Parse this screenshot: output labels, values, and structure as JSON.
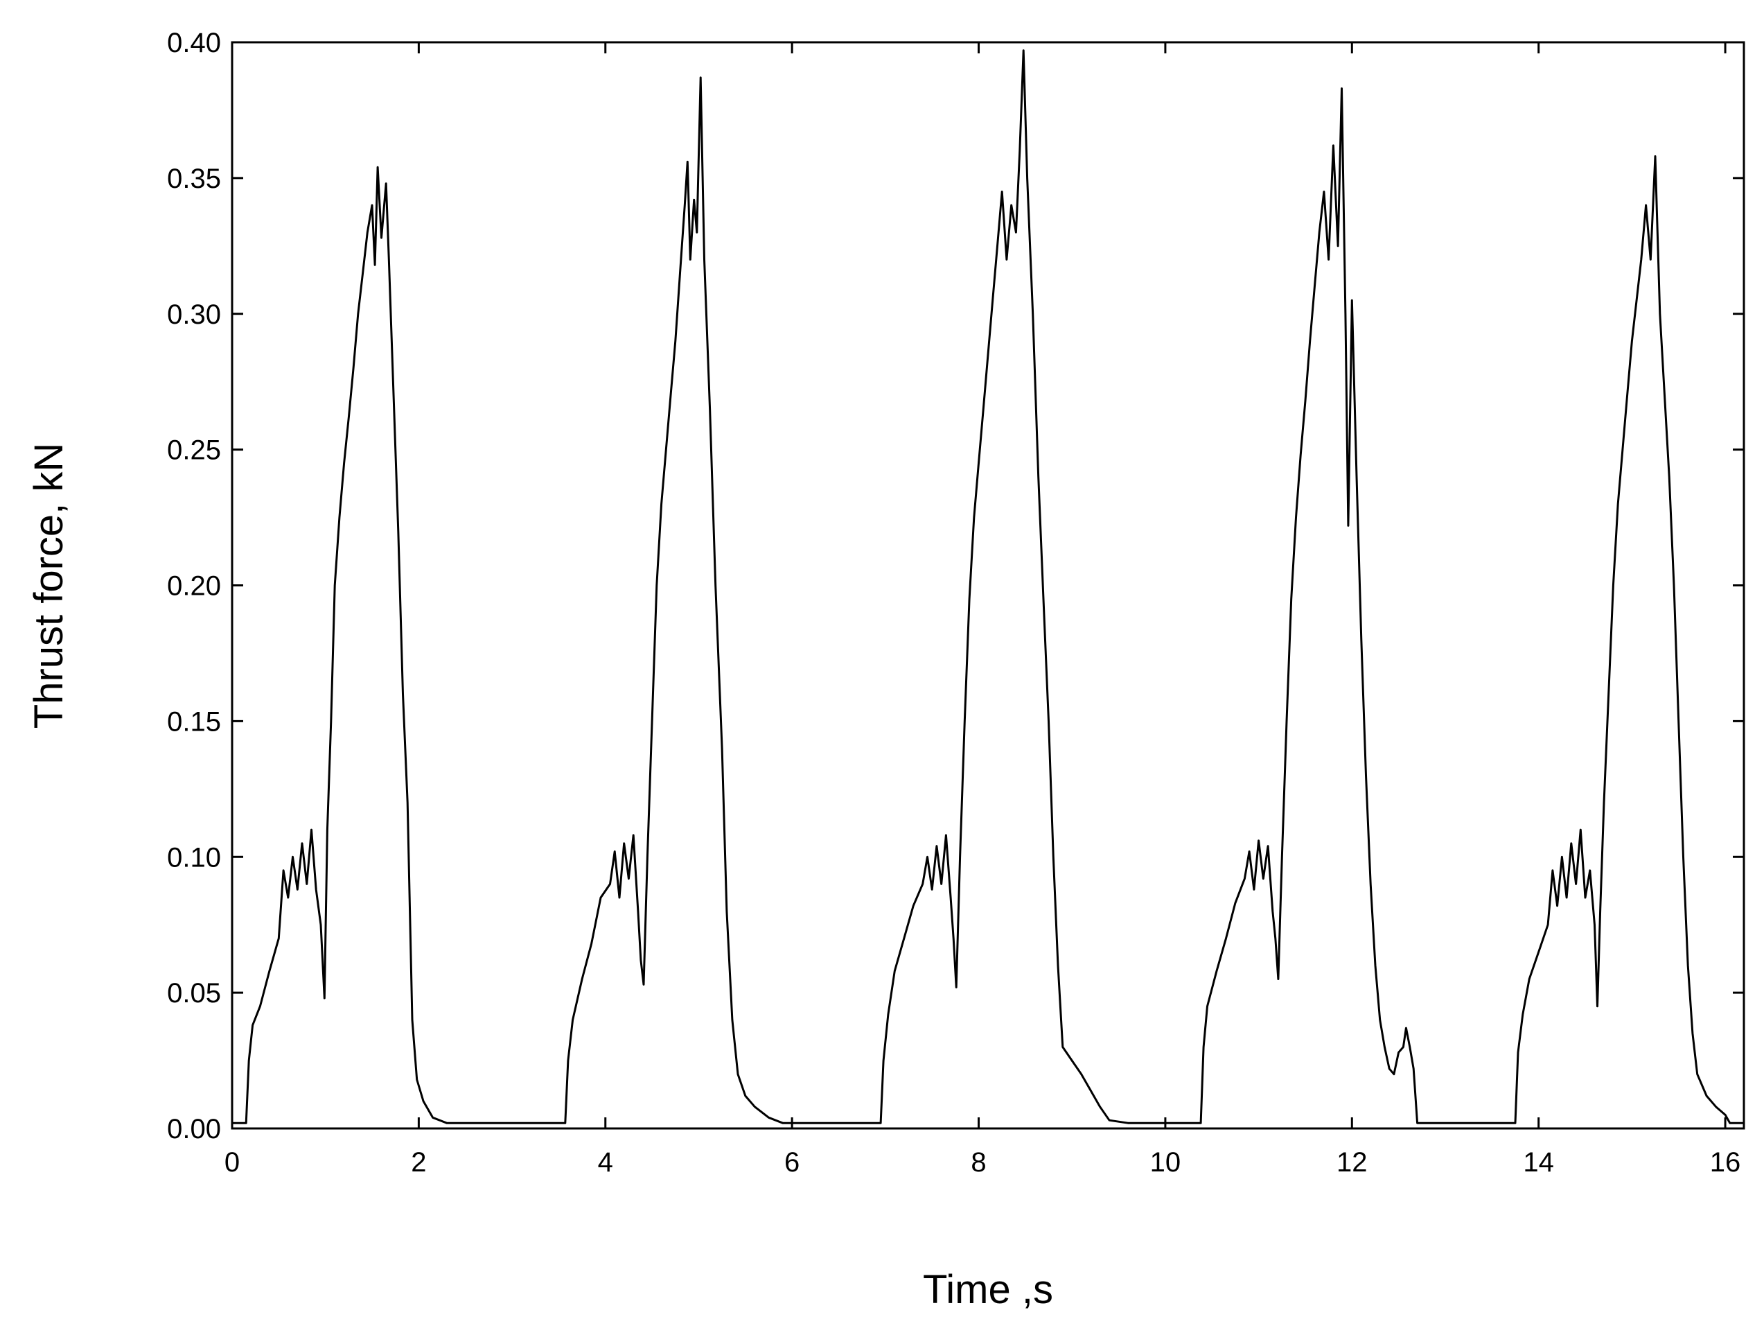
{
  "chart_data": {
    "type": "line",
    "title": "",
    "xlabel": "Time ,s",
    "ylabel": "Thrust force, kN",
    "xlim": [
      0,
      16.2
    ],
    "ylim": [
      0,
      0.4
    ],
    "x_ticks": [
      0,
      2,
      4,
      6,
      8,
      10,
      12,
      14,
      16
    ],
    "x_tick_labels": [
      "0",
      "2",
      "4",
      "6",
      "8",
      "10",
      "12",
      "14",
      "16"
    ],
    "y_ticks": [
      0,
      0.05,
      0.1,
      0.15,
      0.2,
      0.25,
      0.3,
      0.35,
      0.4
    ],
    "y_tick_labels": [
      "0.00",
      "0.05",
      "0.10",
      "0.15",
      "0.20",
      "0.25",
      "0.30",
      "0.35",
      "0.40"
    ],
    "grid": false,
    "line_color": "#000000",
    "series": [
      {
        "points": [
          [
            0.0,
            0.002
          ],
          [
            0.15,
            0.002
          ],
          [
            0.18,
            0.025
          ],
          [
            0.22,
            0.038
          ],
          [
            0.3,
            0.045
          ],
          [
            0.4,
            0.058
          ],
          [
            0.5,
            0.07
          ],
          [
            0.55,
            0.095
          ],
          [
            0.6,
            0.085
          ],
          [
            0.65,
            0.1
          ],
          [
            0.7,
            0.088
          ],
          [
            0.75,
            0.105
          ],
          [
            0.8,
            0.09
          ],
          [
            0.85,
            0.11
          ],
          [
            0.9,
            0.088
          ],
          [
            0.95,
            0.075
          ],
          [
            0.99,
            0.048
          ],
          [
            1.02,
            0.11
          ],
          [
            1.06,
            0.15
          ],
          [
            1.1,
            0.2
          ],
          [
            1.15,
            0.225
          ],
          [
            1.2,
            0.245
          ],
          [
            1.25,
            0.262
          ],
          [
            1.3,
            0.28
          ],
          [
            1.35,
            0.3
          ],
          [
            1.4,
            0.315
          ],
          [
            1.45,
            0.33
          ],
          [
            1.5,
            0.34
          ],
          [
            1.53,
            0.318
          ],
          [
            1.56,
            0.354
          ],
          [
            1.6,
            0.328
          ],
          [
            1.65,
            0.348
          ],
          [
            1.68,
            0.32
          ],
          [
            1.72,
            0.28
          ],
          [
            1.78,
            0.22
          ],
          [
            1.83,
            0.16
          ],
          [
            1.88,
            0.12
          ],
          [
            1.93,
            0.04
          ],
          [
            1.98,
            0.018
          ],
          [
            2.05,
            0.01
          ],
          [
            2.15,
            0.004
          ],
          [
            2.3,
            0.002
          ],
          [
            3.57,
            0.002
          ],
          [
            3.6,
            0.025
          ],
          [
            3.65,
            0.04
          ],
          [
            3.75,
            0.055
          ],
          [
            3.85,
            0.068
          ],
          [
            3.95,
            0.085
          ],
          [
            4.05,
            0.09
          ],
          [
            4.1,
            0.102
          ],
          [
            4.15,
            0.085
          ],
          [
            4.2,
            0.105
          ],
          [
            4.25,
            0.092
          ],
          [
            4.3,
            0.108
          ],
          [
            4.35,
            0.08
          ],
          [
            4.38,
            0.062
          ],
          [
            4.41,
            0.053
          ],
          [
            4.45,
            0.1
          ],
          [
            4.5,
            0.15
          ],
          [
            4.55,
            0.2
          ],
          [
            4.6,
            0.23
          ],
          [
            4.65,
            0.25
          ],
          [
            4.7,
            0.27
          ],
          [
            4.75,
            0.29
          ],
          [
            4.8,
            0.315
          ],
          [
            4.85,
            0.34
          ],
          [
            4.88,
            0.356
          ],
          [
            4.91,
            0.32
          ],
          [
            4.95,
            0.342
          ],
          [
            4.98,
            0.33
          ],
          [
            5.02,
            0.387
          ],
          [
            5.06,
            0.32
          ],
          [
            5.12,
            0.265
          ],
          [
            5.18,
            0.2
          ],
          [
            5.25,
            0.14
          ],
          [
            5.3,
            0.08
          ],
          [
            5.36,
            0.04
          ],
          [
            5.42,
            0.02
          ],
          [
            5.5,
            0.012
          ],
          [
            5.6,
            0.008
          ],
          [
            5.75,
            0.004
          ],
          [
            5.9,
            0.002
          ],
          [
            6.95,
            0.002
          ],
          [
            6.98,
            0.025
          ],
          [
            7.03,
            0.042
          ],
          [
            7.1,
            0.058
          ],
          [
            7.2,
            0.07
          ],
          [
            7.3,
            0.082
          ],
          [
            7.4,
            0.09
          ],
          [
            7.45,
            0.1
          ],
          [
            7.5,
            0.088
          ],
          [
            7.55,
            0.104
          ],
          [
            7.6,
            0.09
          ],
          [
            7.65,
            0.108
          ],
          [
            7.7,
            0.085
          ],
          [
            7.73,
            0.07
          ],
          [
            7.76,
            0.052
          ],
          [
            7.8,
            0.1
          ],
          [
            7.85,
            0.15
          ],
          [
            7.9,
            0.195
          ],
          [
            7.95,
            0.225
          ],
          [
            8.0,
            0.245
          ],
          [
            8.05,
            0.265
          ],
          [
            8.1,
            0.285
          ],
          [
            8.15,
            0.305
          ],
          [
            8.2,
            0.325
          ],
          [
            8.25,
            0.345
          ],
          [
            8.3,
            0.32
          ],
          [
            8.35,
            0.34
          ],
          [
            8.4,
            0.33
          ],
          [
            8.44,
            0.36
          ],
          [
            8.48,
            0.397
          ],
          [
            8.52,
            0.35
          ],
          [
            8.58,
            0.3
          ],
          [
            8.64,
            0.24
          ],
          [
            8.7,
            0.19
          ],
          [
            8.75,
            0.15
          ],
          [
            8.8,
            0.1
          ],
          [
            8.85,
            0.06
          ],
          [
            8.9,
            0.03
          ],
          [
            9.0,
            0.025
          ],
          [
            9.1,
            0.02
          ],
          [
            9.2,
            0.014
          ],
          [
            9.3,
            0.008
          ],
          [
            9.4,
            0.003
          ],
          [
            9.6,
            0.002
          ],
          [
            10.38,
            0.002
          ],
          [
            10.41,
            0.03
          ],
          [
            10.45,
            0.045
          ],
          [
            10.55,
            0.058
          ],
          [
            10.65,
            0.07
          ],
          [
            10.75,
            0.083
          ],
          [
            10.85,
            0.092
          ],
          [
            10.9,
            0.102
          ],
          [
            10.95,
            0.088
          ],
          [
            11.0,
            0.106
          ],
          [
            11.05,
            0.092
          ],
          [
            11.1,
            0.104
          ],
          [
            11.15,
            0.08
          ],
          [
            11.18,
            0.07
          ],
          [
            11.21,
            0.055
          ],
          [
            11.25,
            0.1
          ],
          [
            11.3,
            0.15
          ],
          [
            11.35,
            0.195
          ],
          [
            11.4,
            0.225
          ],
          [
            11.45,
            0.248
          ],
          [
            11.5,
            0.268
          ],
          [
            11.55,
            0.29
          ],
          [
            11.6,
            0.31
          ],
          [
            11.65,
            0.33
          ],
          [
            11.7,
            0.345
          ],
          [
            11.75,
            0.32
          ],
          [
            11.8,
            0.362
          ],
          [
            11.85,
            0.325
          ],
          [
            11.89,
            0.383
          ],
          [
            11.93,
            0.3
          ],
          [
            11.96,
            0.222
          ],
          [
            12.0,
            0.305
          ],
          [
            12.05,
            0.24
          ],
          [
            12.1,
            0.18
          ],
          [
            12.15,
            0.13
          ],
          [
            12.2,
            0.09
          ],
          [
            12.25,
            0.06
          ],
          [
            12.3,
            0.04
          ],
          [
            12.35,
            0.03
          ],
          [
            12.4,
            0.022
          ],
          [
            12.45,
            0.02
          ],
          [
            12.5,
            0.028
          ],
          [
            12.55,
            0.03
          ],
          [
            12.58,
            0.037
          ],
          [
            12.62,
            0.03
          ],
          [
            12.66,
            0.022
          ],
          [
            12.7,
            0.002
          ],
          [
            13.75,
            0.002
          ],
          [
            13.78,
            0.028
          ],
          [
            13.83,
            0.042
          ],
          [
            13.9,
            0.055
          ],
          [
            14.0,
            0.065
          ],
          [
            14.1,
            0.075
          ],
          [
            14.15,
            0.095
          ],
          [
            14.2,
            0.082
          ],
          [
            14.25,
            0.1
          ],
          [
            14.3,
            0.085
          ],
          [
            14.35,
            0.105
          ],
          [
            14.4,
            0.09
          ],
          [
            14.45,
            0.11
          ],
          [
            14.5,
            0.085
          ],
          [
            14.55,
            0.095
          ],
          [
            14.6,
            0.075
          ],
          [
            14.63,
            0.045
          ],
          [
            14.66,
            0.08
          ],
          [
            14.7,
            0.12
          ],
          [
            14.75,
            0.16
          ],
          [
            14.8,
            0.2
          ],
          [
            14.85,
            0.23
          ],
          [
            14.9,
            0.25
          ],
          [
            14.95,
            0.27
          ],
          [
            15.0,
            0.29
          ],
          [
            15.05,
            0.305
          ],
          [
            15.1,
            0.32
          ],
          [
            15.15,
            0.34
          ],
          [
            15.2,
            0.32
          ],
          [
            15.25,
            0.358
          ],
          [
            15.3,
            0.3
          ],
          [
            15.35,
            0.27
          ],
          [
            15.4,
            0.24
          ],
          [
            15.45,
            0.2
          ],
          [
            15.5,
            0.15
          ],
          [
            15.55,
            0.1
          ],
          [
            15.6,
            0.06
          ],
          [
            15.65,
            0.035
          ],
          [
            15.7,
            0.02
          ],
          [
            15.8,
            0.012
          ],
          [
            15.9,
            0.008
          ],
          [
            16.0,
            0.005
          ],
          [
            16.05,
            0.002
          ],
          [
            16.2,
            0.002
          ]
        ]
      }
    ]
  }
}
